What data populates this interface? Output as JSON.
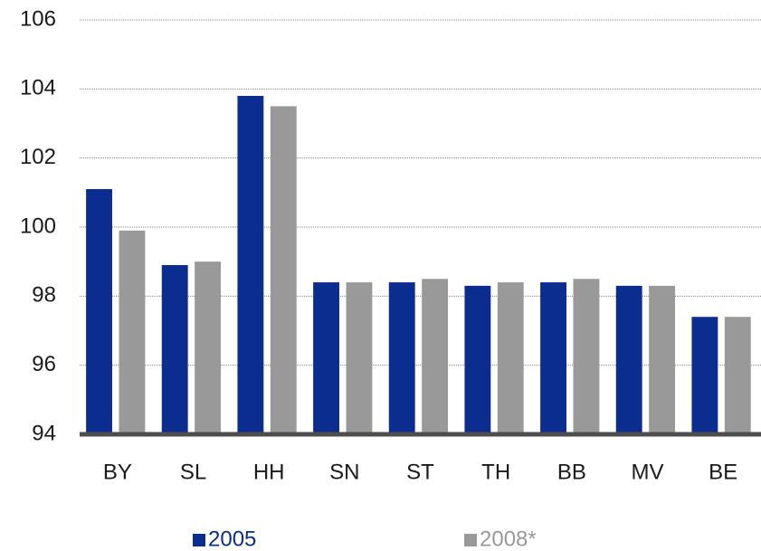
{
  "chart_data": {
    "type": "bar",
    "categories": [
      "BY",
      "SL",
      "HH",
      "SN",
      "ST",
      "TH",
      "BB",
      "MV",
      "BE"
    ],
    "series": [
      {
        "name": "2005",
        "color": "#0b2d8f",
        "values": [
          101.1,
          98.9,
          103.8,
          98.4,
          98.4,
          98.3,
          98.4,
          98.3,
          97.4
        ]
      },
      {
        "name": "2008*",
        "color": "#999999",
        "values": [
          99.9,
          99.0,
          103.5,
          98.4,
          98.5,
          98.4,
          98.5,
          98.3,
          97.4
        ]
      }
    ],
    "ylim": [
      94,
      106
    ],
    "yticks": [
      94,
      96,
      98,
      100,
      102,
      104,
      106
    ],
    "grid": true,
    "legend": "bottom"
  }
}
